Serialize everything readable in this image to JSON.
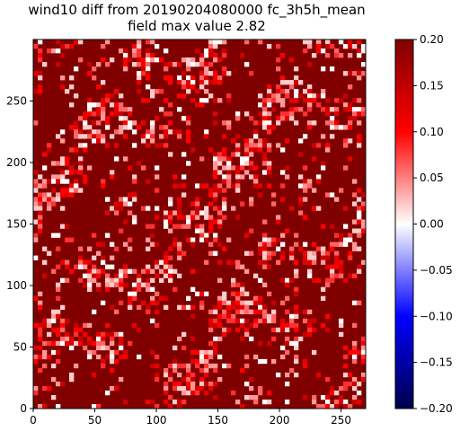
{
  "chart_data": {
    "type": "heatmap",
    "title_line1": "wind10 diff from 20190204080000 fc_3h5h_mean",
    "title_line2": "field max value 2.82",
    "x_range": [
      0,
      270
    ],
    "y_range": [
      0,
      300
    ],
    "x_ticks": [
      0,
      50,
      100,
      150,
      200,
      250
    ],
    "y_ticks": [
      0,
      50,
      100,
      150,
      200,
      250
    ],
    "colorbar": {
      "colormap": "seismic",
      "range": [
        -0.2,
        0.2
      ],
      "ticks": [
        -0.2,
        -0.15,
        -0.1,
        -0.05,
        0.0,
        0.05,
        0.1,
        0.15,
        0.2
      ],
      "tick_labels": [
        "−0.20",
        "−0.15",
        "−0.10",
        "−0.05",
        "0.00",
        "0.05",
        "0.10",
        "0.15",
        "0.20"
      ],
      "colors": {
        "low": "#00004c",
        "mid_low": "#0000ff",
        "zero": "#ffffff",
        "mid_high": "#ff0000",
        "high": "#800000"
      }
    },
    "dominant_value": 0.2,
    "field_max": 2.82
  }
}
